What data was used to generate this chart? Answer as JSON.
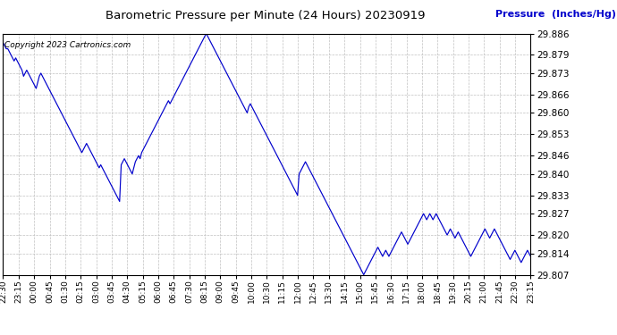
{
  "title": "Barometric Pressure per Minute (24 Hours) 20230919",
  "ylabel": "Pressure  (Inches/Hg)",
  "copyright_text": "Copyright 2023 Cartronics.com",
  "line_color": "#0000cc",
  "background_color": "#ffffff",
  "grid_color": "#c0c0c0",
  "ylim": [
    29.807,
    29.886
  ],
  "yticks": [
    29.807,
    29.814,
    29.82,
    29.827,
    29.833,
    29.84,
    29.846,
    29.853,
    29.86,
    29.866,
    29.873,
    29.879,
    29.886
  ],
  "xtick_labels": [
    "22:30",
    "23:15",
    "00:00",
    "00:45",
    "01:30",
    "02:15",
    "03:00",
    "03:45",
    "04:30",
    "05:15",
    "06:00",
    "06:45",
    "07:30",
    "08:15",
    "09:00",
    "09:45",
    "10:00",
    "10:30",
    "11:15",
    "12:00",
    "12:45",
    "13:30",
    "14:15",
    "15:00",
    "15:45",
    "16:30",
    "17:15",
    "18:00",
    "18:45",
    "19:30",
    "20:15",
    "21:00",
    "21:45",
    "22:30",
    "23:15"
  ],
  "pressure_data": [
    29.883,
    29.882,
    29.881,
    29.881,
    29.88,
    29.879,
    29.878,
    29.877,
    29.878,
    29.877,
    29.876,
    29.875,
    29.874,
    29.872,
    29.873,
    29.874,
    29.873,
    29.872,
    29.871,
    29.87,
    29.869,
    29.868,
    29.87,
    29.872,
    29.873,
    29.872,
    29.871,
    29.87,
    29.869,
    29.868,
    29.867,
    29.866,
    29.865,
    29.864,
    29.863,
    29.862,
    29.861,
    29.86,
    29.859,
    29.858,
    29.857,
    29.856,
    29.855,
    29.854,
    29.853,
    29.852,
    29.851,
    29.85,
    29.849,
    29.848,
    29.847,
    29.848,
    29.849,
    29.85,
    29.849,
    29.848,
    29.847,
    29.846,
    29.845,
    29.844,
    29.843,
    29.842,
    29.843,
    29.842,
    29.841,
    29.84,
    29.839,
    29.838,
    29.837,
    29.836,
    29.835,
    29.834,
    29.833,
    29.832,
    29.831,
    29.843,
    29.844,
    29.845,
    29.844,
    29.843,
    29.842,
    29.841,
    29.84,
    29.842,
    29.844,
    29.845,
    29.846,
    29.845,
    29.847,
    29.848,
    29.849,
    29.85,
    29.851,
    29.852,
    29.853,
    29.854,
    29.855,
    29.856,
    29.857,
    29.858,
    29.859,
    29.86,
    29.861,
    29.862,
    29.863,
    29.864,
    29.863,
    29.864,
    29.865,
    29.866,
    29.867,
    29.868,
    29.869,
    29.87,
    29.871,
    29.872,
    29.873,
    29.874,
    29.875,
    29.876,
    29.877,
    29.878,
    29.879,
    29.88,
    29.881,
    29.882,
    29.883,
    29.884,
    29.885,
    29.886,
    29.885,
    29.884,
    29.883,
    29.882,
    29.881,
    29.88,
    29.879,
    29.878,
    29.877,
    29.876,
    29.875,
    29.874,
    29.873,
    29.872,
    29.871,
    29.87,
    29.869,
    29.868,
    29.867,
    29.866,
    29.865,
    29.864,
    29.863,
    29.862,
    29.861,
    29.86,
    29.862,
    29.863,
    29.862,
    29.861,
    29.86,
    29.859,
    29.858,
    29.857,
    29.856,
    29.855,
    29.854,
    29.853,
    29.852,
    29.851,
    29.85,
    29.849,
    29.848,
    29.847,
    29.846,
    29.845,
    29.844,
    29.843,
    29.842,
    29.841,
    29.84,
    29.839,
    29.838,
    29.837,
    29.836,
    29.835,
    29.834,
    29.833,
    29.84,
    29.841,
    29.842,
    29.843,
    29.844,
    29.843,
    29.842,
    29.841,
    29.84,
    29.839,
    29.838,
    29.837,
    29.836,
    29.835,
    29.834,
    29.833,
    29.832,
    29.831,
    29.83,
    29.829,
    29.828,
    29.827,
    29.826,
    29.825,
    29.824,
    29.823,
    29.822,
    29.821,
    29.82,
    29.819,
    29.818,
    29.817,
    29.816,
    29.815,
    29.814,
    29.813,
    29.812,
    29.811,
    29.81,
    29.809,
    29.808,
    29.807,
    29.808,
    29.809,
    29.81,
    29.811,
    29.812,
    29.813,
    29.814,
    29.815,
    29.816,
    29.815,
    29.814,
    29.813,
    29.814,
    29.815,
    29.814,
    29.813,
    29.814,
    29.815,
    29.816,
    29.817,
    29.818,
    29.819,
    29.82,
    29.821,
    29.82,
    29.819,
    29.818,
    29.817,
    29.818,
    29.819,
    29.82,
    29.821,
    29.822,
    29.823,
    29.824,
    29.825,
    29.826,
    29.827,
    29.826,
    29.825,
    29.826,
    29.827,
    29.826,
    29.825,
    29.826,
    29.827,
    29.826,
    29.825,
    29.824,
    29.823,
    29.822,
    29.821,
    29.82,
    29.821,
    29.822,
    29.821,
    29.82,
    29.819,
    29.82,
    29.821,
    29.82,
    29.819,
    29.818,
    29.817,
    29.816,
    29.815,
    29.814,
    29.813,
    29.814,
    29.815,
    29.816,
    29.817,
    29.818,
    29.819,
    29.82,
    29.821,
    29.822,
    29.821,
    29.82,
    29.819,
    29.82,
    29.821,
    29.822,
    29.821,
    29.82,
    29.819,
    29.818,
    29.817,
    29.816,
    29.815,
    29.814,
    29.813,
    29.812,
    29.813,
    29.814,
    29.815,
    29.814,
    29.813,
    29.812,
    29.811,
    29.812,
    29.813,
    29.814,
    29.815,
    29.814,
    29.813
  ]
}
